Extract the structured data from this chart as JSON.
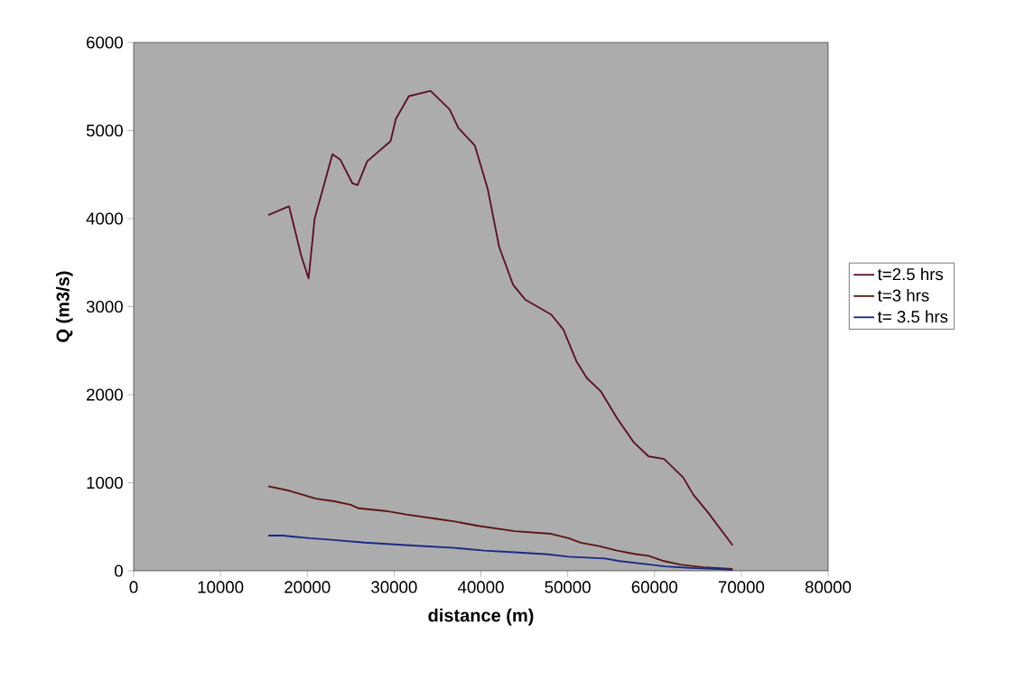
{
  "chart_data": {
    "type": "line",
    "xlabel": "distance (m)",
    "ylabel": "Q (m3/s)",
    "legend": "right",
    "xlim": [
      0,
      80000
    ],
    "ylim": [
      0,
      6000
    ],
    "xticks": [
      0,
      10000,
      20000,
      30000,
      40000,
      50000,
      60000,
      70000,
      80000
    ],
    "yticks": [
      0,
      1000,
      2000,
      3000,
      4000,
      5000,
      6000
    ],
    "series": [
      {
        "name": "t=2.5 hrs",
        "color": "#5e0f30",
        "x": [
          15500,
          17900,
          19300,
          20150,
          20850,
          22900,
          23800,
          25200,
          25800,
          26900,
          29600,
          30200,
          31700,
          34200,
          36400,
          37400,
          39300,
          40800,
          42100,
          43700,
          45100,
          48100,
          49500,
          51000,
          52200,
          53800,
          55700,
          57600,
          59300,
          61100,
          63300,
          64500,
          66100,
          69000
        ],
        "values": [
          4040,
          4140,
          3580,
          3320,
          4000,
          4730,
          4670,
          4400,
          4380,
          4650,
          4880,
          5130,
          5390,
          5450,
          5240,
          5030,
          4830,
          4330,
          3680,
          3250,
          3080,
          2910,
          2740,
          2380,
          2190,
          2040,
          1730,
          1460,
          1300,
          1270,
          1060,
          860,
          670,
          290
        ]
      },
      {
        "name": "t=3 hrs",
        "color": "#5a1612",
        "x": [
          15500,
          17900,
          18900,
          21000,
          23100,
          25000,
          25900,
          29000,
          31400,
          34900,
          37000,
          39700,
          43900,
          48100,
          50100,
          51500,
          53600,
          55700,
          57800,
          59300,
          61100,
          63000,
          65700,
          69000
        ],
        "values": [
          960,
          910,
          880,
          820,
          790,
          750,
          710,
          680,
          640,
          590,
          560,
          510,
          450,
          420,
          370,
          320,
          280,
          230,
          190,
          170,
          110,
          70,
          40,
          20
        ]
      },
      {
        "name": "t= 3.5 hrs",
        "color": "#1a2a86",
        "x": [
          15500,
          17200,
          18200,
          20300,
          23100,
          26600,
          30000,
          33500,
          37000,
          40400,
          43900,
          47400,
          50100,
          54300,
          56000,
          59500,
          61200,
          64700,
          67500,
          69000
        ],
        "values": [
          400,
          400,
          390,
          370,
          350,
          320,
          300,
          280,
          260,
          230,
          210,
          190,
          160,
          140,
          110,
          70,
          50,
          30,
          20,
          10
        ]
      }
    ]
  }
}
